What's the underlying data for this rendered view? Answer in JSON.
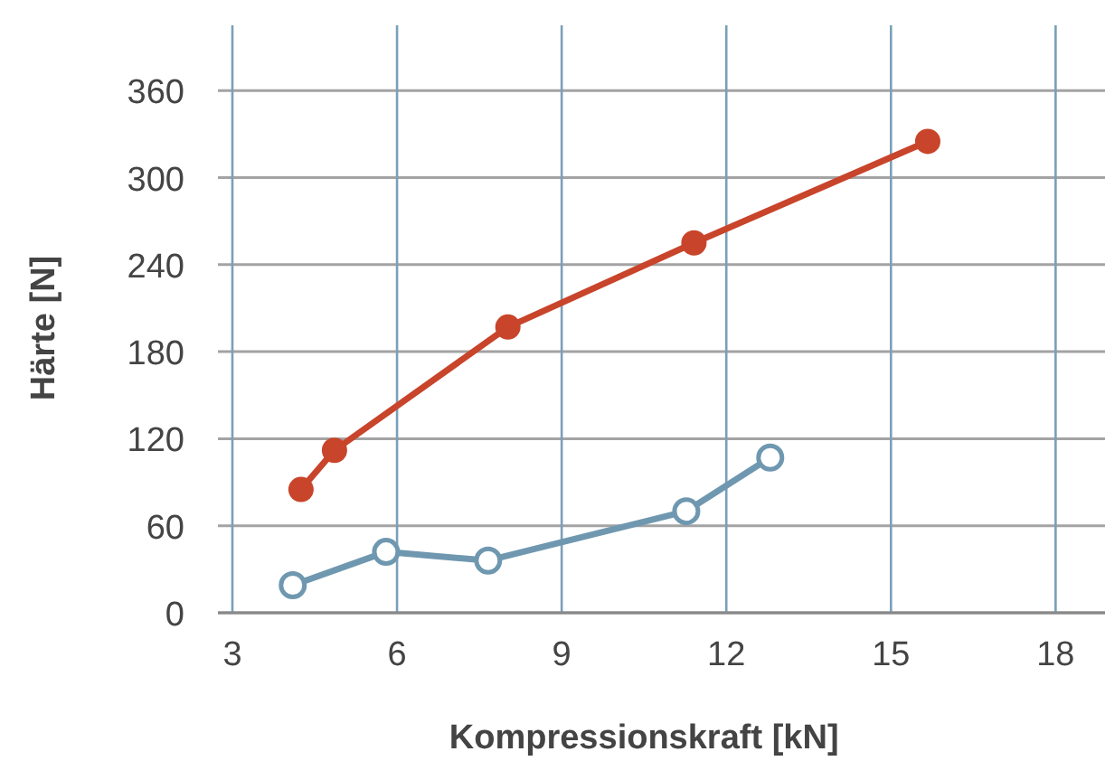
{
  "chart_data": {
    "type": "line",
    "xlabel": "Kompressionskraft [kN]",
    "ylabel": "Härte [N]",
    "xlim": [
      3,
      18.9
    ],
    "ylim": [
      0,
      405
    ],
    "xticks": [
      3,
      6,
      9,
      12,
      15,
      18
    ],
    "yticks": [
      0,
      60,
      120,
      180,
      240,
      300,
      360
    ],
    "grid": true,
    "series": [
      {
        "color": "#c8442a",
        "marker": "circle",
        "x": [
          4.25,
          4.86,
          8.02,
          11.41,
          15.67
        ],
        "values": [
          85,
          112,
          197,
          255,
          325
        ]
      },
      {
        "color": "#6f98b0",
        "marker": "circle-open",
        "x": [
          4.1,
          5.8,
          7.66,
          11.27,
          12.8
        ],
        "values": [
          19,
          42,
          36,
          70,
          107
        ]
      }
    ]
  }
}
